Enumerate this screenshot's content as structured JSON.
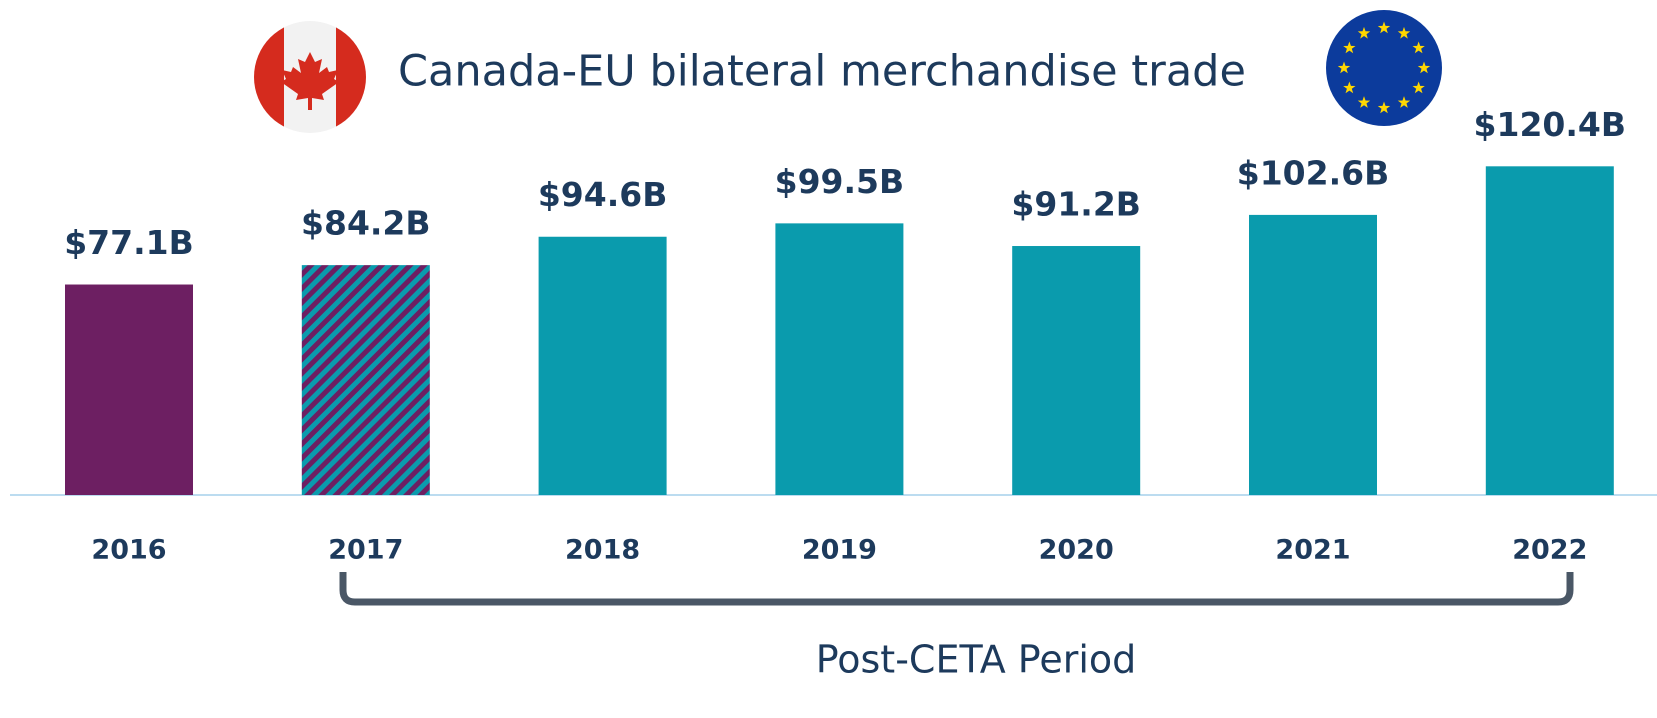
{
  "chart_data": {
    "type": "bar",
    "title": "Canada-EU bilateral merchandise trade",
    "categories": [
      "2016",
      "2017",
      "2018",
      "2019",
      "2020",
      "2021",
      "2022"
    ],
    "values": [
      77.1,
      84.2,
      94.6,
      99.5,
      91.2,
      102.6,
      120.4
    ],
    "value_labels": [
      "$77.1B",
      "$84.2B",
      "$94.6B",
      "$99.5B",
      "$91.2B",
      "$102.6B",
      "$120.4B"
    ],
    "colors": [
      "#6d1f62",
      "#6d1f62",
      "#0a9bad",
      "#0a9bad",
      "#0a9bad",
      "#0a9bad",
      "#0a9bad"
    ],
    "hatch": [
      null,
      "#0a9bad",
      null,
      null,
      null,
      null,
      null
    ],
    "annotation": "Post-CETA Period"
  }
}
